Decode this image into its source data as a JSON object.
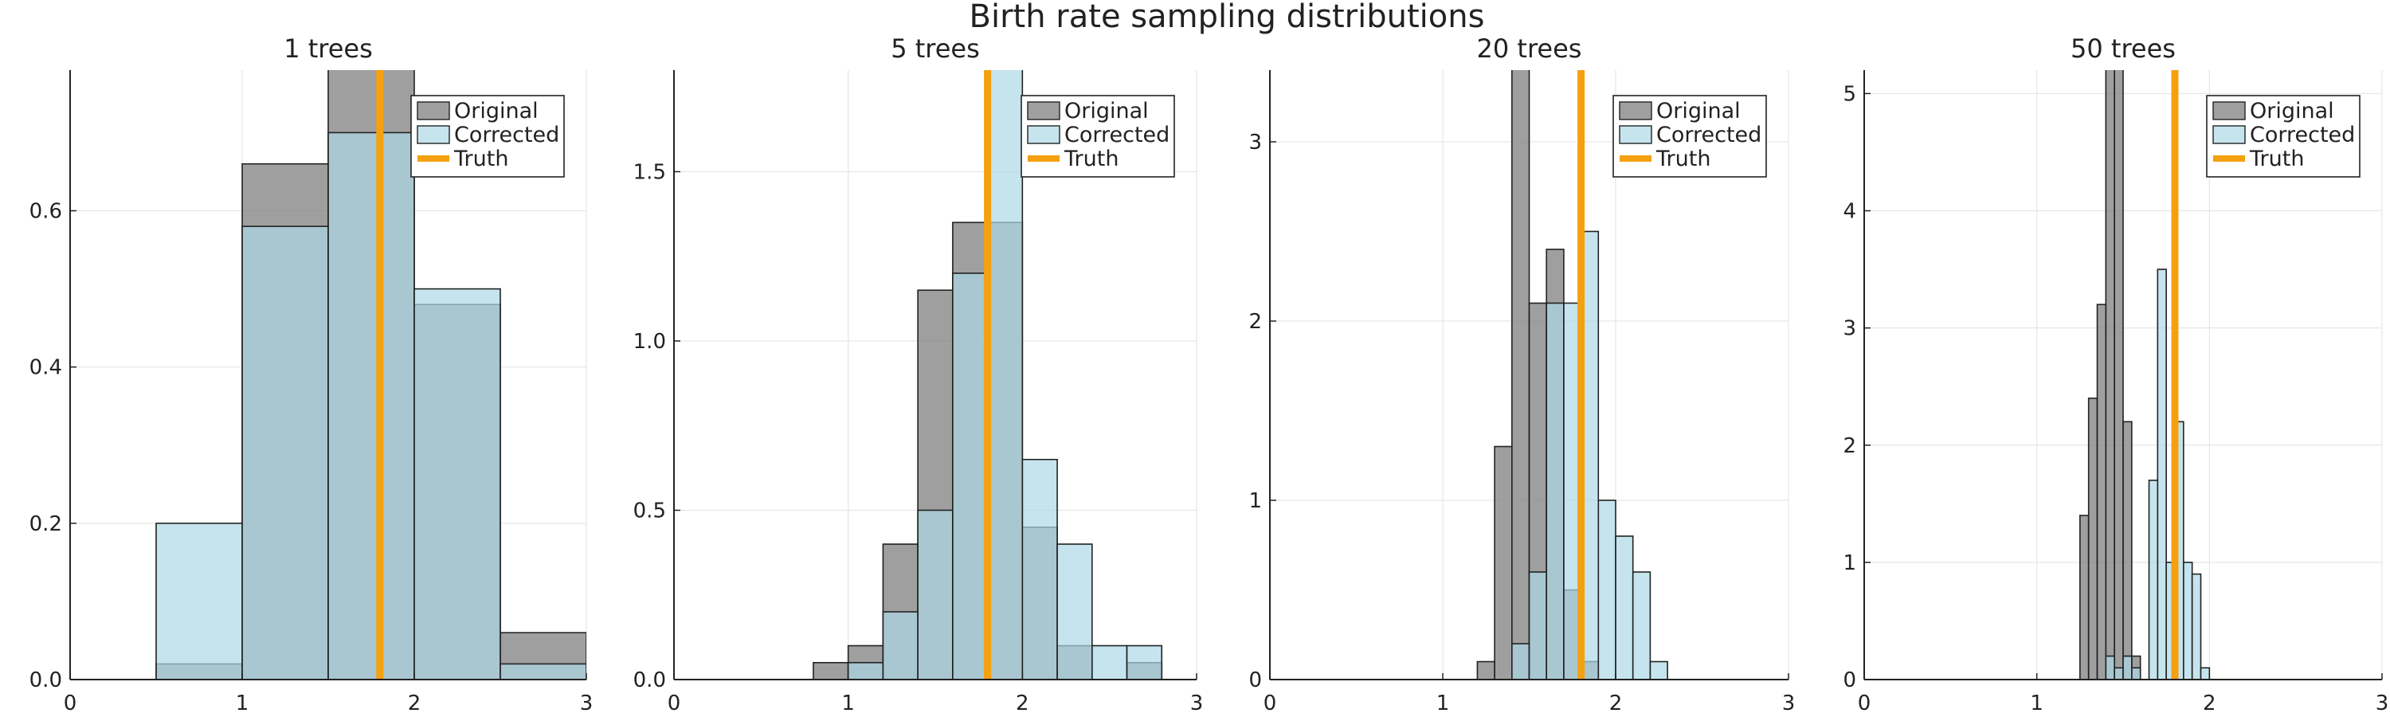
{
  "title": "Birth rate sampling distributions",
  "colors": {
    "original": "#7f7f7f",
    "corrected": "#add8e6",
    "truth": "#f5a00f"
  },
  "chart_data": [
    {
      "type": "bar",
      "title": "1 trees",
      "truth": 1.8,
      "xlim": [
        0,
        3
      ],
      "ylim": [
        0,
        0.78
      ],
      "xticks": [
        0,
        1,
        2,
        3
      ],
      "yticks": [
        0.0,
        0.2,
        0.4,
        0.6
      ],
      "yticklabels": [
        "0.0",
        "0.2",
        "0.4",
        "0.6"
      ],
      "legend": [
        "Original",
        "Corrected",
        "Truth"
      ],
      "legend_position": "top-right",
      "grid": true,
      "original_bins": [
        [
          0.5,
          1.0,
          0.02
        ],
        [
          1.0,
          1.5,
          0.66
        ],
        [
          1.5,
          2.0,
          0.88
        ],
        [
          2.0,
          2.5,
          0.48
        ],
        [
          2.5,
          3.0,
          0.06
        ]
      ],
      "corrected_bins": [
        [
          0.5,
          1.0,
          0.2
        ],
        [
          1.0,
          1.5,
          0.58
        ],
        [
          1.5,
          2.0,
          0.7
        ],
        [
          2.0,
          2.5,
          0.5
        ],
        [
          2.5,
          3.0,
          0.02
        ]
      ]
    },
    {
      "type": "bar",
      "title": "5 trees",
      "truth": 1.8,
      "xlim": [
        0,
        3
      ],
      "ylim": [
        0,
        1.8
      ],
      "xticks": [
        0,
        1,
        2,
        3
      ],
      "yticks": [
        0.0,
        0.5,
        1.0,
        1.5
      ],
      "yticklabels": [
        "0.0",
        "0.5",
        "1.0",
        "1.5"
      ],
      "legend": [
        "Original",
        "Corrected",
        "Truth"
      ],
      "legend_position": "top-right",
      "grid": true,
      "original_bins": [
        [
          0.8,
          1.0,
          0.05
        ],
        [
          1.0,
          1.2,
          0.1
        ],
        [
          1.2,
          1.4,
          0.4
        ],
        [
          1.4,
          1.6,
          1.15
        ],
        [
          1.6,
          1.8,
          1.35
        ],
        [
          1.8,
          2.0,
          1.35
        ],
        [
          2.0,
          2.2,
          0.45
        ],
        [
          2.2,
          2.4,
          0.1
        ],
        [
          2.4,
          2.6,
          0.0
        ],
        [
          2.6,
          2.8,
          0.05
        ]
      ],
      "corrected_bins": [
        [
          1.0,
          1.2,
          0.05
        ],
        [
          1.2,
          1.4,
          0.2
        ],
        [
          1.4,
          1.6,
          0.5
        ],
        [
          1.6,
          1.8,
          1.2
        ],
        [
          1.8,
          2.0,
          2.0
        ],
        [
          2.0,
          2.2,
          0.65
        ],
        [
          2.2,
          2.4,
          0.4
        ],
        [
          2.4,
          2.6,
          0.1
        ],
        [
          2.6,
          2.8,
          0.1
        ]
      ]
    },
    {
      "type": "bar",
      "title": "20 trees",
      "truth": 1.8,
      "xlim": [
        0,
        3
      ],
      "ylim": [
        0,
        3.4
      ],
      "xticks": [
        0,
        1,
        2,
        3
      ],
      "yticks": [
        0,
        1,
        2,
        3
      ],
      "yticklabels": [
        "0",
        "1",
        "2",
        "3"
      ],
      "legend": [
        "Original",
        "Corrected",
        "Truth"
      ],
      "legend_position": "top-right",
      "grid": true,
      "original_bins": [
        [
          1.2,
          1.3,
          0.1
        ],
        [
          1.3,
          1.4,
          1.3
        ],
        [
          1.4,
          1.5,
          3.5
        ],
        [
          1.5,
          1.6,
          2.1
        ],
        [
          1.6,
          1.7,
          2.4
        ],
        [
          1.7,
          1.8,
          0.5
        ],
        [
          1.8,
          1.9,
          0.1
        ]
      ],
      "corrected_bins": [
        [
          1.4,
          1.5,
          0.2
        ],
        [
          1.5,
          1.6,
          0.6
        ],
        [
          1.6,
          1.7,
          2.1
        ],
        [
          1.7,
          1.8,
          2.1
        ],
        [
          1.8,
          1.9,
          2.5
        ],
        [
          1.9,
          2.0,
          1.0
        ],
        [
          2.0,
          2.1,
          0.8
        ],
        [
          2.1,
          2.2,
          0.6
        ],
        [
          2.2,
          2.3,
          0.1
        ]
      ]
    },
    {
      "type": "bar",
      "title": "50 trees",
      "truth": 1.8,
      "xlim": [
        0,
        3
      ],
      "ylim": [
        0,
        5.2
      ],
      "xticks": [
        0,
        1,
        2,
        3
      ],
      "yticks": [
        0,
        1,
        2,
        3,
        4,
        5
      ],
      "yticklabels": [
        "0",
        "1",
        "2",
        "3",
        "4",
        "5"
      ],
      "legend": [
        "Original",
        "Corrected",
        "Truth"
      ],
      "legend_position": "top-right",
      "grid": true,
      "original_bins": [
        [
          1.25,
          1.3,
          1.4
        ],
        [
          1.3,
          1.35,
          2.4
        ],
        [
          1.35,
          1.4,
          3.2
        ],
        [
          1.4,
          1.45,
          5.4
        ],
        [
          1.45,
          1.5,
          5.4
        ],
        [
          1.5,
          1.55,
          2.2
        ],
        [
          1.55,
          1.6,
          0.2
        ]
      ],
      "corrected_bins": [
        [
          1.4,
          1.45,
          0.2
        ],
        [
          1.45,
          1.5,
          0.1
        ],
        [
          1.5,
          1.55,
          0.2
        ],
        [
          1.55,
          1.6,
          0.1
        ],
        [
          1.6,
          1.65,
          0.0
        ],
        [
          1.65,
          1.7,
          1.7
        ],
        [
          1.7,
          1.75,
          3.5
        ],
        [
          1.75,
          1.8,
          1.0
        ],
        [
          1.8,
          1.85,
          2.2
        ],
        [
          1.85,
          1.9,
          1.0
        ],
        [
          1.9,
          1.95,
          0.9
        ],
        [
          1.95,
          2.0,
          0.1
        ]
      ]
    }
  ]
}
